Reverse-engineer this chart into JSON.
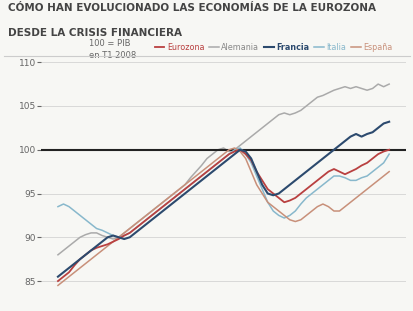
{
  "title_line1": "CÓMO HAN EVOLUCIONADO LAS ECONOMÍAS DE LA EUROZONA",
  "title_line2": "DESDE LA CRISIS FINANCIERA",
  "annotation": "100 = PIB\nen T1 2008",
  "ylim": [
    83,
    110
  ],
  "yticks": [
    85,
    90,
    95,
    100,
    105,
    110
  ],
  "reference_line": 100,
  "series": {
    "Eurozona": {
      "color": "#b94040",
      "linewidth": 1.3,
      "zorder": 4,
      "values": [
        85.0,
        85.5,
        86.0,
        86.8,
        87.5,
        88.0,
        88.5,
        88.8,
        89.0,
        89.2,
        89.5,
        89.8,
        90.2,
        90.5,
        91.0,
        91.5,
        92.0,
        92.5,
        93.0,
        93.5,
        94.0,
        94.5,
        95.0,
        95.5,
        96.0,
        96.5,
        97.0,
        97.5,
        98.0,
        98.5,
        99.0,
        99.5,
        99.8,
        100.0,
        99.5,
        98.8,
        97.5,
        96.5,
        95.5,
        95.0,
        94.5,
        94.0,
        94.2,
        94.5,
        95.0,
        95.5,
        96.0,
        96.5,
        97.0,
        97.5,
        97.8,
        97.5,
        97.2,
        97.5,
        97.8,
        98.2,
        98.5,
        99.0,
        99.5,
        99.8,
        100.0
      ]
    },
    "Alemania": {
      "color": "#aaaaaa",
      "linewidth": 1.1,
      "zorder": 2,
      "values": [
        88.0,
        88.5,
        89.0,
        89.5,
        90.0,
        90.3,
        90.5,
        90.5,
        90.2,
        90.0,
        89.8,
        90.0,
        90.5,
        91.0,
        91.5,
        92.0,
        92.5,
        93.0,
        93.5,
        94.0,
        94.5,
        95.0,
        95.5,
        96.0,
        96.8,
        97.5,
        98.2,
        99.0,
        99.5,
        100.0,
        100.2,
        99.8,
        100.0,
        100.5,
        101.0,
        101.5,
        102.0,
        102.5,
        103.0,
        103.5,
        104.0,
        104.2,
        104.0,
        104.2,
        104.5,
        105.0,
        105.5,
        106.0,
        106.2,
        106.5,
        106.8,
        107.0,
        107.2,
        107.0,
        107.2,
        107.0,
        106.8,
        107.0,
        107.5,
        107.2,
        107.5
      ]
    },
    "Francia": {
      "color": "#2c4a6e",
      "linewidth": 1.5,
      "zorder": 5,
      "values": [
        85.5,
        86.0,
        86.5,
        87.0,
        87.5,
        88.0,
        88.5,
        89.0,
        89.5,
        90.0,
        90.2,
        90.0,
        89.8,
        90.0,
        90.5,
        91.0,
        91.5,
        92.0,
        92.5,
        93.0,
        93.5,
        94.0,
        94.5,
        95.0,
        95.5,
        96.0,
        96.5,
        97.0,
        97.5,
        98.0,
        98.5,
        99.0,
        99.5,
        100.0,
        99.8,
        99.0,
        97.5,
        96.0,
        95.0,
        94.8,
        95.0,
        95.5,
        96.0,
        96.5,
        97.0,
        97.5,
        98.0,
        98.5,
        99.0,
        99.5,
        100.0,
        100.5,
        101.0,
        101.5,
        101.8,
        101.5,
        101.8,
        102.0,
        102.5,
        103.0,
        103.2
      ]
    },
    "Italia": {
      "color": "#88b8cc",
      "linewidth": 1.1,
      "zorder": 3,
      "values": [
        93.5,
        93.8,
        93.5,
        93.0,
        92.5,
        92.0,
        91.5,
        91.0,
        90.8,
        90.5,
        90.2,
        90.0,
        90.2,
        90.5,
        91.0,
        91.5,
        92.0,
        92.5,
        93.0,
        93.5,
        94.0,
        94.5,
        95.0,
        95.5,
        96.0,
        96.5,
        97.0,
        97.5,
        98.0,
        98.5,
        99.0,
        99.5,
        100.0,
        100.2,
        99.5,
        98.5,
        97.0,
        95.5,
        94.0,
        93.0,
        92.5,
        92.2,
        92.5,
        93.0,
        93.8,
        94.5,
        95.0,
        95.5,
        96.0,
        96.5,
        97.0,
        97.0,
        96.8,
        96.5,
        96.5,
        96.8,
        97.0,
        97.5,
        98.0,
        98.5,
        99.5
      ]
    },
    "España": {
      "color": "#c8907a",
      "linewidth": 1.1,
      "zorder": 3,
      "values": [
        84.5,
        85.0,
        85.5,
        86.0,
        86.5,
        87.0,
        87.5,
        88.0,
        88.5,
        89.0,
        89.5,
        90.0,
        90.5,
        91.0,
        91.5,
        92.0,
        92.5,
        93.0,
        93.5,
        94.0,
        94.5,
        95.0,
        95.5,
        96.0,
        96.5,
        97.0,
        97.5,
        98.0,
        98.5,
        99.0,
        99.5,
        100.0,
        100.2,
        99.8,
        99.0,
        97.5,
        96.0,
        95.0,
        94.0,
        93.5,
        93.0,
        92.5,
        92.0,
        91.8,
        92.0,
        92.5,
        93.0,
        93.5,
        93.8,
        93.5,
        93.0,
        93.0,
        93.5,
        94.0,
        94.5,
        95.0,
        95.5,
        96.0,
        96.5,
        97.0,
        97.5
      ]
    }
  },
  "background_color": "#f7f7f4",
  "title_color": "#444444",
  "legend_order": [
    "Eurozona",
    "Alemania",
    "Francia",
    "Italia",
    "España"
  ]
}
